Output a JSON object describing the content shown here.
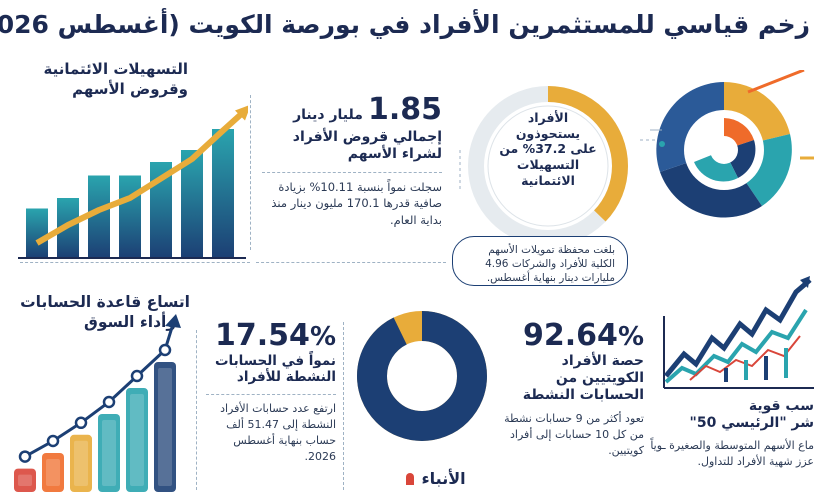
{
  "title": "زخم قياسي للمستثمرين الأفراد في بورصة الكويت (أغسطس 2026)",
  "credit_facilities_chart": {
    "label_line1": "التسهيلات الائتمانية",
    "label_line2": "وقروض الأسهم",
    "bar_heights": [
      0.33,
      0.4,
      0.55,
      0.55,
      0.64,
      0.72,
      0.86
    ],
    "trend": [
      0.1,
      0.22,
      0.32,
      0.4,
      0.53,
      0.66,
      0.85
    ]
  },
  "loans": {
    "value": "1.85",
    "unit": "مليار دينار",
    "line1": "إجمالي قروض الأفراد",
    "line2": "لشراء الأسهم",
    "body": "سجلت نمواً بنسبة 10.11% بزيادة صافية قدرها 170.1 مليون دينار منذ بداية العام."
  },
  "ring_share": {
    "percent": 37.2,
    "text1": "الأفراد",
    "text2": "يستحوذون",
    "text3": "على 37.2% من",
    "text4": "التسهيلات",
    "text5": "الائتمانية"
  },
  "portfolio_note": {
    "text": "بلغت محفظة تمويلات الأسهم الكلية للأفراد والشركات 4.96 مليارات دينار بنهاية أغسطس."
  },
  "accounts_chart": {
    "label_line1": "اتساع قاعدة الحسابات",
    "label_line2": "وأداء السوق",
    "bar_heights": [
      0.18,
      0.3,
      0.44,
      0.6,
      0.8,
      1.0
    ]
  },
  "active_growth": {
    "value": "17.54",
    "percent_sign": "%",
    "line1": "نمواً في الحسابات",
    "line2": "النشطة للأفراد",
    "body": "ارتفع عدد حسابات الأفراد النشطة إلى 51.47 ألف حساب بنهاية أغسطس 2026."
  },
  "kuwaiti_share": {
    "value": "92.64",
    "percent_sign": "%",
    "percent": 92.64,
    "line1": "حصة الأفراد",
    "line2": "الكويتيين من",
    "line3": "الحسابات النشطة",
    "body": "تعود أكثر من 9 حسابات نشطة من كل 10 حسابات إلى أفراد كويتيين."
  },
  "main_index": {
    "line1": "سب قوية",
    "line2": "شر \"الرئيسي 50\"",
    "body": "ماع الأسهم المتوسطة والصغيرة ـوياً عزز شهية الأفراد للتداول."
  },
  "logo": {
    "text": "الأنباء"
  },
  "colors": {
    "navy": "#1c3f74",
    "teal": "#2aa4ae",
    "gold": "#e8ac3a",
    "orange": "#ef6b2a",
    "red": "#d9463a",
    "light_gray": "#e6ebef"
  }
}
